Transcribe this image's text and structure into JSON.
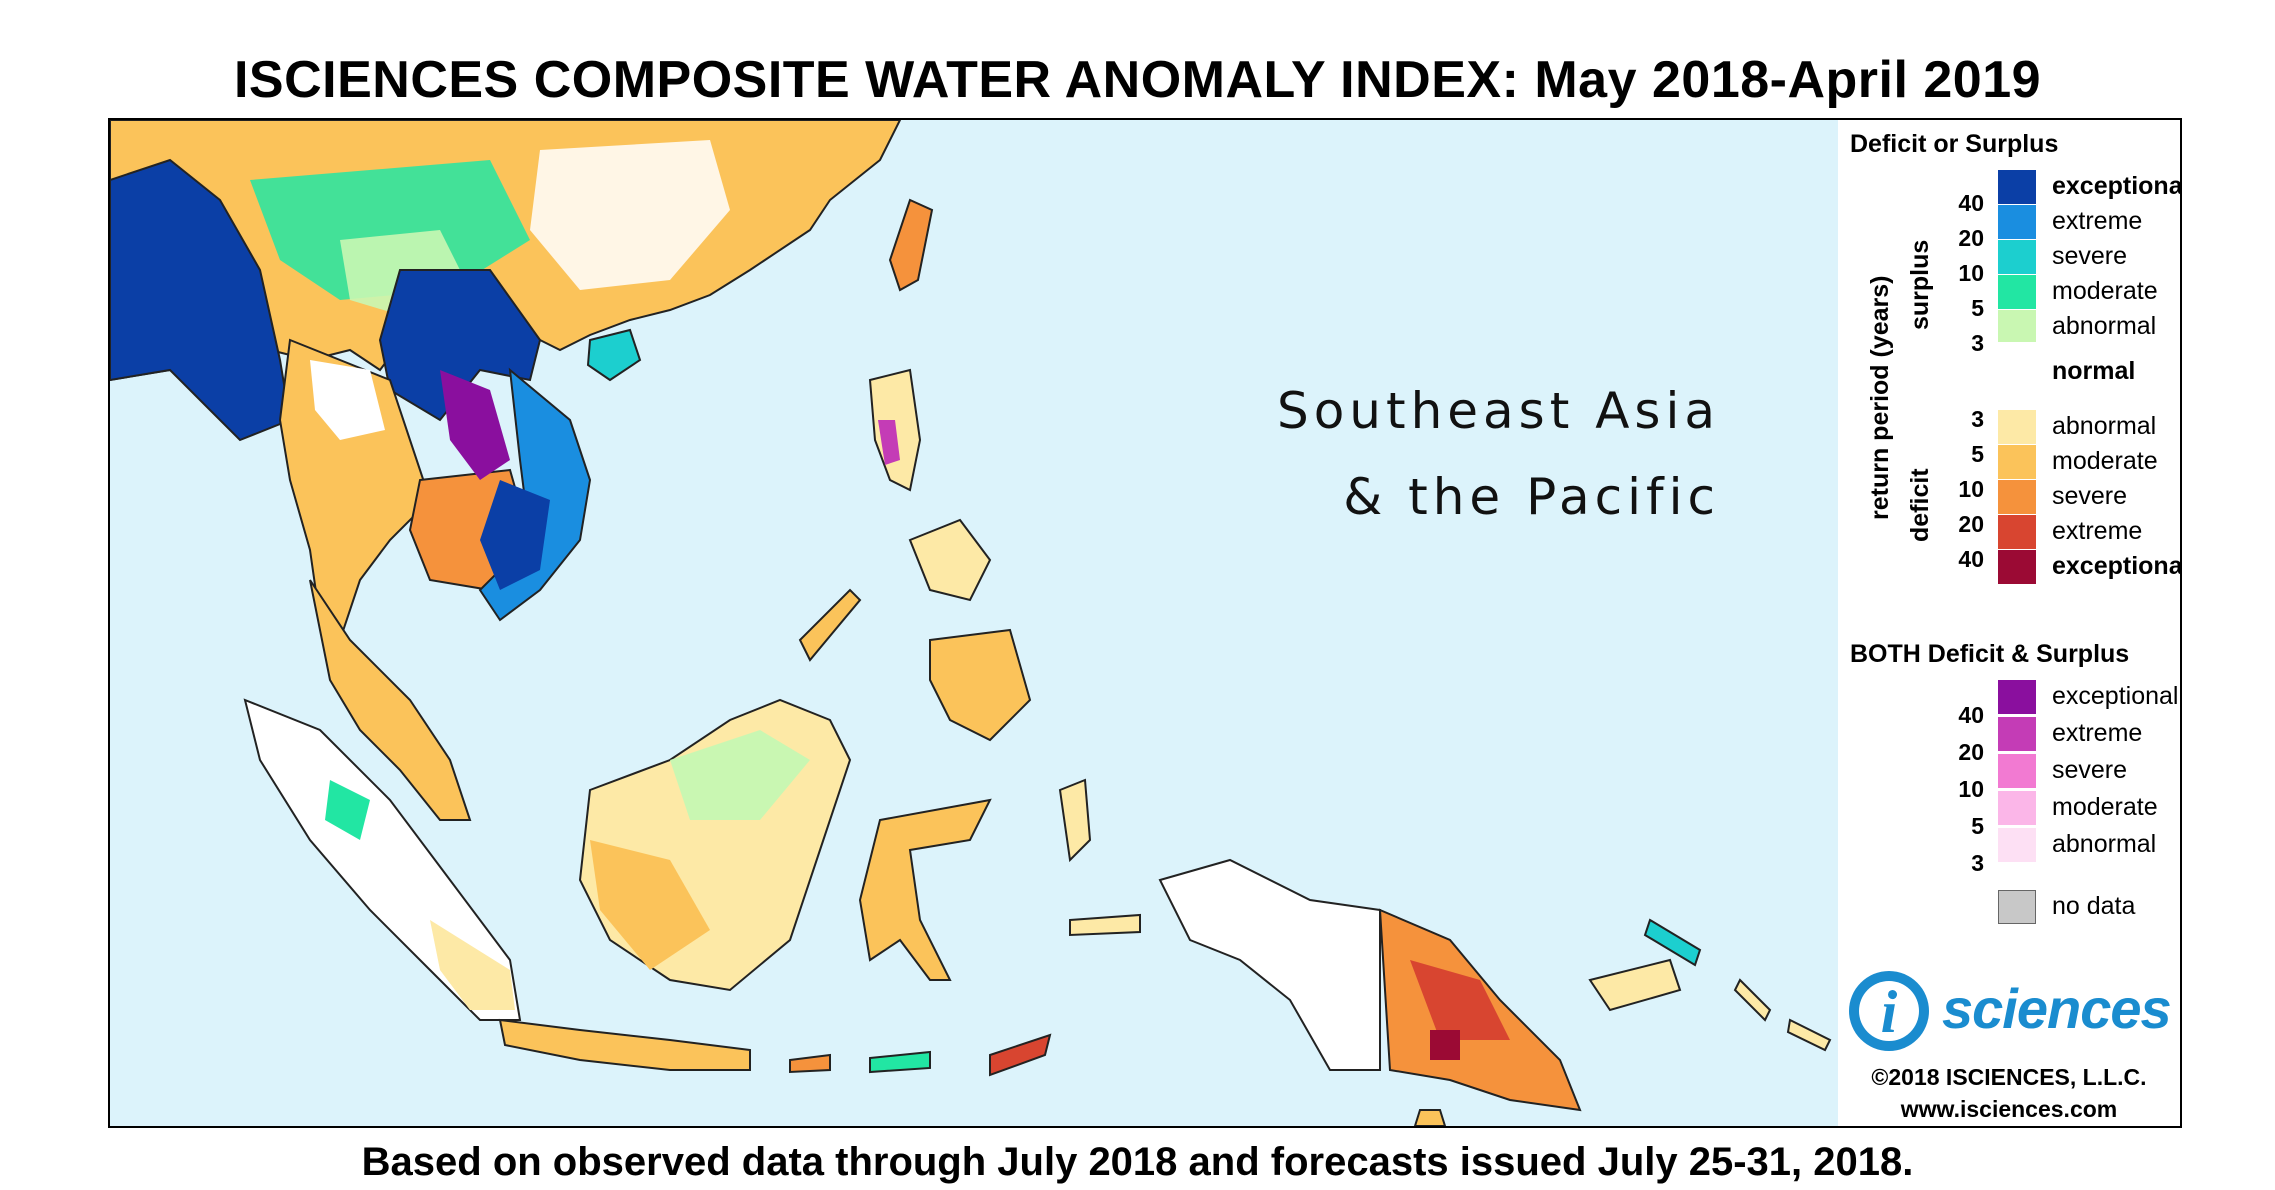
{
  "title": "ISCIENCES COMPOSITE WATER ANOMALY INDEX: May 2018-April 2019",
  "footer": "Based on observed data through July 2018 and forecasts issued July 25-31, 2018.",
  "region_label": {
    "line1": "Southeast Asia",
    "line2": "& the Pacific"
  },
  "legend": {
    "heading1": "Deficit or Surplus",
    "heading2": "BOTH Deficit & Surplus",
    "axis_return": "return period (years)",
    "axis_surplus": "surplus",
    "axis_deficit": "deficit",
    "surplus": [
      {
        "label": "exceptional",
        "color": "#0b3fa6",
        "bold": true
      },
      {
        "label": "extreme",
        "color": "#1a8ee0",
        "bold": false
      },
      {
        "label": "severe",
        "color": "#1ccfcf",
        "bold": false
      },
      {
        "label": "moderate",
        "color": "#22e6a3",
        "bold": false
      },
      {
        "label": "abnormal",
        "color": "#c9f7b2",
        "bold": false
      }
    ],
    "surplus_ticks": [
      "40",
      "20",
      "10",
      "5",
      "3"
    ],
    "normal": {
      "label": "normal",
      "color": "#ffffff"
    },
    "deficit": [
      {
        "label": "abnormal",
        "color": "#fde9a6",
        "bold": false
      },
      {
        "label": "moderate",
        "color": "#fbc35a",
        "bold": false
      },
      {
        "label": "severe",
        "color": "#f5923c",
        "bold": false
      },
      {
        "label": "extreme",
        "color": "#d84530",
        "bold": false
      },
      {
        "label": "exceptional",
        "color": "#9b0a34",
        "bold": true
      }
    ],
    "deficit_ticks": [
      "3",
      "5",
      "10",
      "20",
      "40"
    ],
    "both": [
      {
        "label": "exceptional",
        "color": "#8a0f9e"
      },
      {
        "label": "extreme",
        "color": "#c43cb6"
      },
      {
        "label": "severe",
        "color": "#f27ad2"
      },
      {
        "label": "moderate",
        "color": "#fbb6e8"
      },
      {
        "label": "abnormal",
        "color": "#fde0f4"
      }
    ],
    "both_ticks": [
      "40",
      "20",
      "10",
      "5",
      "3"
    ],
    "nodata": {
      "label": "no data",
      "color": "#c8c8c8"
    }
  },
  "logo": {
    "letter": "i",
    "text": "sciences"
  },
  "copyright": "©2018 ISCIENCES, L.L.C.",
  "website": "www.isciences.com",
  "colors": {
    "ocean": "#dcf3fb",
    "land_outline": "#222222"
  }
}
